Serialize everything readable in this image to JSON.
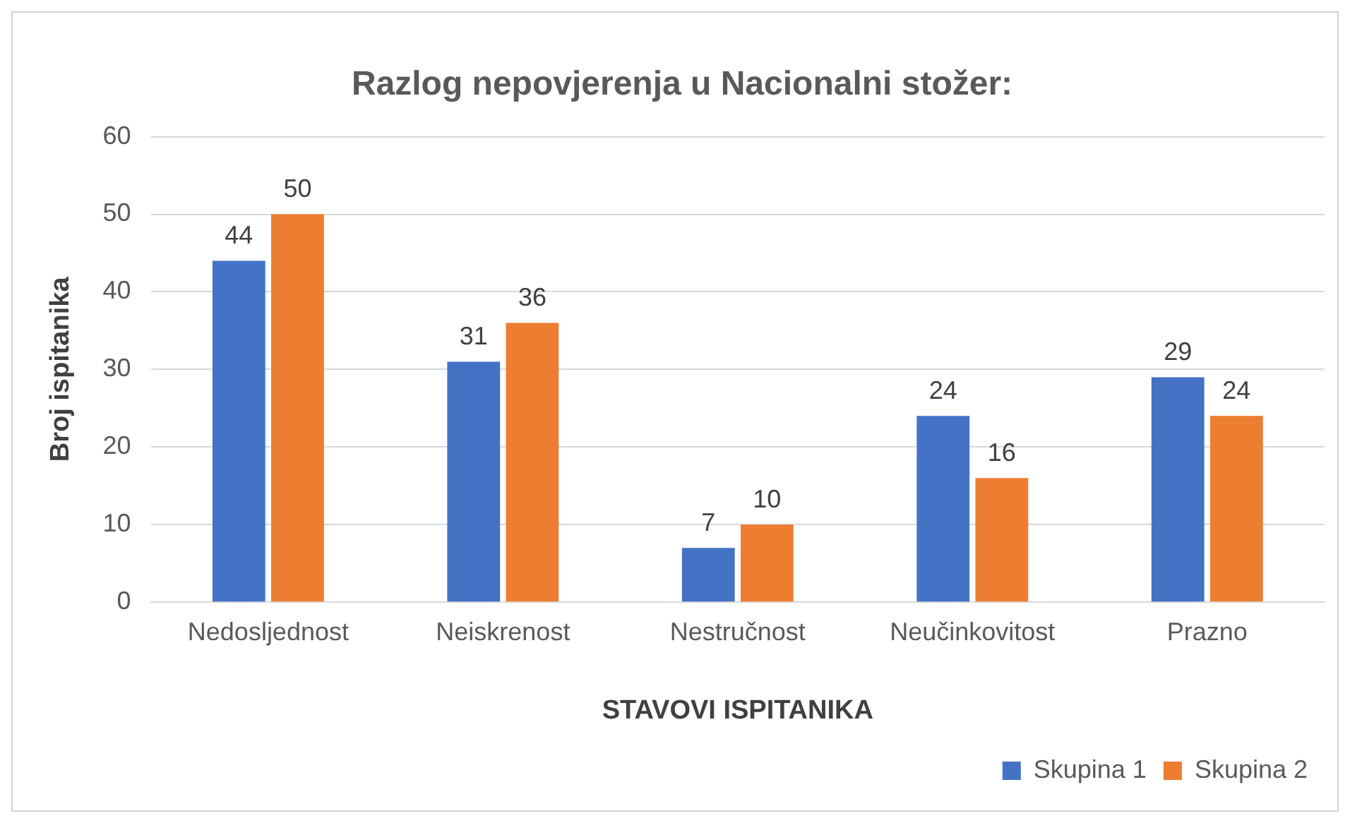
{
  "chart_data": {
    "type": "bar",
    "title": "Razlog nepovjerenja u Nacionalni stožer:",
    "xlabel": "STAVOVI ISPITANIKA",
    "ylabel": "Broj ispitanika",
    "categories": [
      "Nedosljednost",
      "Neiskrenost",
      "Nestručnost",
      "Neučinkovitost",
      "Prazno"
    ],
    "series": [
      {
        "name": "Skupina 1",
        "color": "#4472c4",
        "values": [
          44,
          31,
          7,
          24,
          29
        ]
      },
      {
        "name": "Skupina 2",
        "color": "#ed7d31",
        "values": [
          50,
          36,
          10,
          16,
          24
        ]
      }
    ],
    "ylim": [
      0,
      60
    ],
    "yticks": [
      0,
      10,
      20,
      30,
      40,
      50,
      60
    ],
    "grid": "y",
    "legend": "bottom right",
    "data_labels": true
  }
}
